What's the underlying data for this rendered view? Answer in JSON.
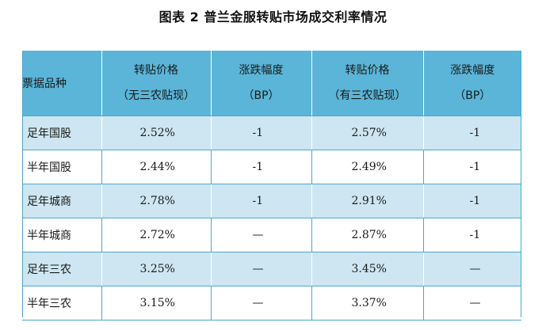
{
  "title": "图表 2  普兰金服转贴市场成交利率情况",
  "header": {
    "kind": "票据品种",
    "col1_line1": "转贴价格",
    "col1_line2": "（无三农贴现）",
    "col2_line1": "涨跌幅度",
    "col2_line2": "（BP）",
    "col3_line1": "转贴价格",
    "col3_line2": "（有三农贴现）",
    "col4_line1": "涨跌幅度",
    "col4_line2": "（BP）"
  },
  "rows": [
    {
      "kind": "足年国股",
      "price_no": "2.52%",
      "chg_no": "-1",
      "price_yes": "2.57%",
      "chg_yes": "-1"
    },
    {
      "kind": "半年国股",
      "price_no": "2.44%",
      "chg_no": "-1",
      "price_yes": "2.49%",
      "chg_yes": "-1"
    },
    {
      "kind": "足年城商",
      "price_no": "2.78%",
      "chg_no": "-1",
      "price_yes": "2.91%",
      "chg_yes": "-1"
    },
    {
      "kind": "半年城商",
      "price_no": "2.72%",
      "chg_no": "—",
      "price_yes": "2.87%",
      "chg_yes": "-1"
    },
    {
      "kind": "足年三农",
      "price_no": "3.25%",
      "chg_no": "—",
      "price_yes": "3.45%",
      "chg_yes": "—"
    },
    {
      "kind": "半年三农",
      "price_no": "3.15%",
      "chg_no": "—",
      "price_yes": "3.37%",
      "chg_yes": "—"
    }
  ],
  "colors": {
    "header_bg": "#5ab5d8",
    "shade_row": "#cde6f1",
    "border": "#4aa9cc"
  }
}
